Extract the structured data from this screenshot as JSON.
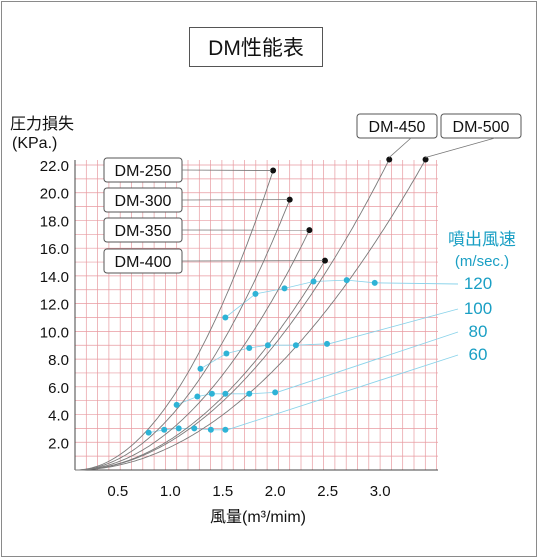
{
  "chart_data": {
    "type": "line",
    "title": "DM性能表",
    "xlabel": "風量(m³/mim)",
    "ylabel": "圧力損失",
    "ylabel_unit": "(KPa.)",
    "xlim": [
      0,
      3.5
    ],
    "ylim": [
      0,
      22
    ],
    "x_ticks": [
      "0.5",
      "1.0",
      "1.5",
      "2.0",
      "2.5",
      "3.0"
    ],
    "y_ticks": [
      "2.0",
      "4.0",
      "6.0",
      "8.0",
      "10.0",
      "12.0",
      "14.0",
      "16.0",
      "18.0",
      "20.0",
      "22.0"
    ],
    "grid": true,
    "series": [
      {
        "name": "DM-250",
        "end": [
          1.91,
          21.6
        ],
        "points": [
          [
            0.71,
            2.7
          ],
          [
            0.98,
            4.7
          ],
          [
            1.21,
            7.3
          ],
          [
            1.45,
            11.0
          ]
        ]
      },
      {
        "name": "DM-300",
        "end": [
          2.07,
          19.5
        ],
        "points": [
          [
            0.86,
            2.9
          ],
          [
            1.18,
            5.3
          ],
          [
            1.46,
            8.4
          ],
          [
            1.74,
            12.7
          ]
        ]
      },
      {
        "name": "DM-350",
        "end": [
          2.26,
          17.3
        ],
        "points": [
          [
            1.0,
            3.0
          ],
          [
            1.32,
            5.5
          ],
          [
            1.68,
            8.8
          ],
          [
            2.02,
            13.1
          ]
        ]
      },
      {
        "name": "DM-400",
        "end": [
          2.41,
          15.1
        ],
        "points": [
          [
            1.15,
            3.0
          ],
          [
            1.45,
            5.5
          ],
          [
            1.86,
            9.0
          ],
          [
            2.3,
            13.6
          ]
        ]
      },
      {
        "name": "DM-450",
        "end": [
          3.03,
          22.4
        ],
        "points": [
          [
            1.31,
            2.9
          ],
          [
            1.68,
            5.5
          ],
          [
            2.13,
            9.0
          ],
          [
            2.62,
            13.7
          ]
        ]
      },
      {
        "name": "DM-500",
        "end": [
          3.38,
          22.4
        ],
        "points": [
          [
            1.45,
            2.9
          ],
          [
            1.93,
            5.6
          ],
          [
            2.43,
            9.1
          ],
          [
            2.89,
            13.5
          ]
        ]
      }
    ],
    "velocity_lines": {
      "label": "噴出風速",
      "unit": "(m/sec.)",
      "values": [
        "120",
        "100",
        "80",
        "60"
      ]
    }
  },
  "colors": {
    "curve": "#7a7a7a",
    "grid": "#e89aa0",
    "marker": "#2eb3d6",
    "leader": "#8ad3ea",
    "velocity_text": "#1a9fc4"
  }
}
